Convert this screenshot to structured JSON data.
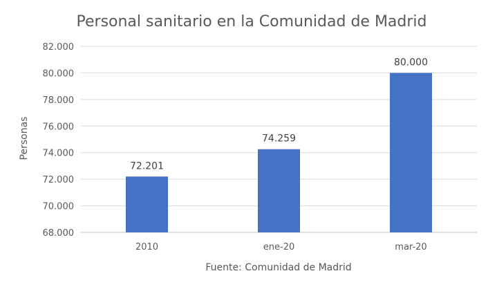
{
  "chart_data": {
    "type": "bar",
    "title": "Personal sanitario en la Comunidad de Madrid",
    "xlabel": "Fuente: Comunidad de Madrid",
    "ylabel": "Personas",
    "categories": [
      "2010",
      "ene-20",
      "mar-20"
    ],
    "values": [
      72201,
      74259,
      80000
    ],
    "value_labels": [
      "72.201",
      "74.259",
      "80.000"
    ],
    "ylim": [
      68000,
      82000
    ],
    "yticks": [
      68000,
      70000,
      72000,
      74000,
      76000,
      78000,
      80000,
      82000
    ],
    "ytick_labels": [
      "68.000",
      "70.000",
      "72.000",
      "74.000",
      "76.000",
      "78.000",
      "80.000",
      "82.000"
    ],
    "grid": true,
    "legend": "none",
    "colors": {
      "bar": "#4472c4",
      "gridline": "#d9d9d9",
      "text": "#595959"
    }
  }
}
